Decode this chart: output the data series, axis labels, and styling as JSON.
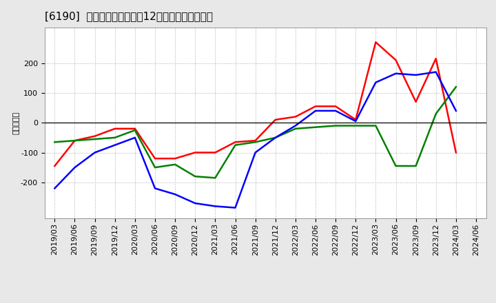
{
  "title": "[6190]  キャッシュフローの12か月移動合計の推移",
  "ylabel": "（百万円）",
  "x_labels": [
    "2019/03",
    "2019/06",
    "2019/09",
    "2019/12",
    "2020/03",
    "2020/06",
    "2020/09",
    "2020/12",
    "2021/03",
    "2021/06",
    "2021/09",
    "2021/12",
    "2022/03",
    "2022/06",
    "2022/09",
    "2022/12",
    "2023/03",
    "2023/06",
    "2023/09",
    "2023/12",
    "2024/03",
    "2024/06"
  ],
  "operating_cf": [
    -145,
    -60,
    -45,
    -20,
    -20,
    -120,
    -120,
    -100,
    -100,
    -65,
    -60,
    10,
    20,
    55,
    55,
    10,
    270,
    210,
    70,
    215,
    -100,
    null
  ],
  "investing_cf": [
    -65,
    -60,
    -55,
    -50,
    -25,
    -150,
    -140,
    -180,
    -185,
    -75,
    -65,
    -50,
    -20,
    -15,
    -10,
    -10,
    -10,
    -145,
    -145,
    30,
    120,
    null
  ],
  "free_cf": [
    -220,
    -150,
    -100,
    -75,
    -50,
    -220,
    -240,
    -270,
    -280,
    -285,
    -100,
    -50,
    -10,
    40,
    40,
    5,
    135,
    165,
    160,
    170,
    40,
    null
  ],
  "colors": {
    "operating": "#ff0000",
    "investing": "#008000",
    "free": "#0000ff"
  },
  "ylim": [
    -320,
    320
  ],
  "yticks": [
    -200,
    -100,
    0,
    100,
    200
  ],
  "background_color": "#e8e8e8",
  "plot_bg_color": "#ffffff",
  "grid_color": "#aaaaaa",
  "title_fontsize": 11,
  "axis_fontsize": 8,
  "legend_fontsize": 9,
  "linewidth": 1.8
}
